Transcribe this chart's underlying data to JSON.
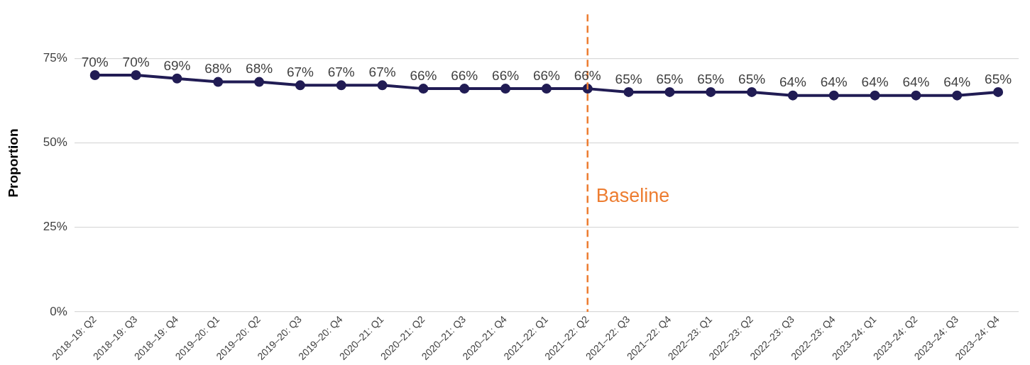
{
  "chart_data": {
    "type": "line",
    "ylabel": "Proportion",
    "categories": [
      "2018–19: Q2",
      "2018–19: Q3",
      "2018–19: Q4",
      "2019–20: Q1",
      "2019–20: Q2",
      "2019–20: Q3",
      "2019–20: Q4",
      "2020–21: Q1",
      "2020–21: Q2",
      "2020–21: Q3",
      "2020–21: Q4",
      "2021–22: Q1",
      "2021–22: Q2",
      "2021–22: Q3",
      "2021–22: Q4",
      "2022–23: Q1",
      "2022–23: Q2",
      "2022–23: Q3",
      "2022–23: Q4",
      "2023–24: Q1",
      "2023–24: Q2",
      "2023–24: Q3",
      "2023–24: Q4"
    ],
    "series": [
      {
        "color": "#211c54",
        "values": [
          70,
          70,
          69,
          68,
          68,
          67,
          67,
          67,
          66,
          66,
          66,
          66,
          66,
          65,
          65,
          65,
          65,
          64,
          64,
          64,
          64,
          64,
          65
        ]
      }
    ],
    "value_labels": [
      "70%",
      "70%",
      "69%",
      "68%",
      "68%",
      "67%",
      "67%",
      "67%",
      "66%",
      "66%",
      "66%",
      "66%",
      "66%",
      "65%",
      "65%",
      "65%",
      "65%",
      "64%",
      "64%",
      "64%",
      "64%",
      "64%",
      "65%"
    ],
    "ylim": [
      0,
      88
    ],
    "yticks": [
      {
        "value": 0,
        "label": "0%"
      },
      {
        "value": 25,
        "label": "25%"
      },
      {
        "value": 50,
        "label": "50%"
      },
      {
        "value": 75,
        "label": "75%"
      }
    ],
    "ref_lines": [
      {
        "axis": "x",
        "value": "2021–22: Q2",
        "label": "Baseline",
        "color": "#ed7d31",
        "line_style": "dashed"
      }
    ],
    "grid": "y",
    "legend": false,
    "marker": "circle",
    "line_style": "solid"
  }
}
